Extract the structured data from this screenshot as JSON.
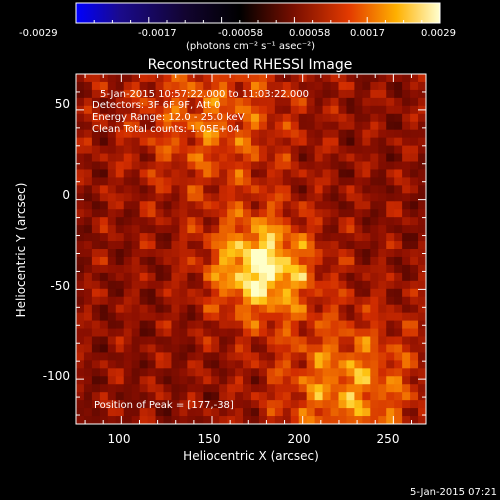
{
  "colorbar": {
    "ticks": [
      "-0.0029",
      "-0.0017",
      "-0.00058",
      "0.00058",
      "0.0017",
      "0.0029"
    ],
    "unit_label": "(photons cm⁻² s⁻¹ asec⁻²)"
  },
  "plot": {
    "title": "Reconstructed RHESSI Image",
    "xlabel": "Heliocentric X (arcsec)",
    "ylabel": "Heliocentric Y (arcsec)",
    "xticks": [
      "100",
      "150",
      "200",
      "250"
    ],
    "yticks": [
      "50",
      "0",
      "-50",
      "-100"
    ],
    "info": [
      "5-Jan-2015 10:57:22.000 to 11:03:22.000",
      "Detectors: 3F 6F 9F, Att 0",
      "Energy Range: 12.0 - 25.0 keV",
      "Clean     Total counts: 1.05E+04"
    ],
    "peak_label": "Position of Peak = [177,-38]"
  },
  "footer": {
    "timestamp": "5-Jan-2015 07:21"
  },
  "image_data": {
    "xlim": [
      75,
      268
    ],
    "ylim": [
      -125,
      70
    ],
    "peak": [
      177,
      -38
    ]
  }
}
